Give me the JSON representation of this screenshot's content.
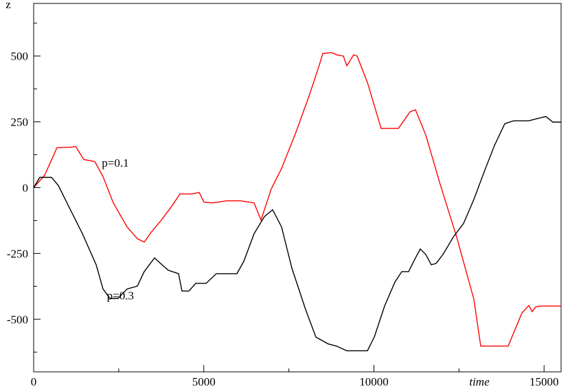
{
  "chart_data": {
    "type": "line",
    "x_label": "time",
    "y_label": "z",
    "xlim": [
      0,
      15500
    ],
    "ylim": [
      -700,
      700
    ],
    "xticks": [
      0,
      5000,
      10000,
      15000
    ],
    "yticks": [
      -500,
      -250,
      0,
      250,
      500
    ],
    "x_minor_ticks": [
      2500,
      7500,
      12500
    ],
    "y_minor_ticks": [
      -625,
      -375,
      -125,
      125,
      375,
      625
    ],
    "series": [
      {
        "name": "p=0.1",
        "color": "#ff0000",
        "x": [
          0,
          323,
          686,
          1130,
          1231,
          1473,
          1796,
          2038,
          2341,
          2745,
          3047,
          3249,
          3451,
          3754,
          4057,
          4299,
          4662,
          4864,
          5005,
          5267,
          5671,
          6075,
          6478,
          6680,
          6983,
          7286,
          7689,
          8093,
          8396,
          8496,
          8759,
          8900,
          9102,
          9203,
          9405,
          9506,
          9808,
          10212,
          10414,
          10717,
          10817,
          11060,
          11221,
          11524,
          11927,
          12432,
          12936,
          13138,
          13380,
          13845,
          13945,
          14349,
          14551,
          14652,
          14753,
          14914,
          15500
        ],
        "values": [
          0,
          47,
          152,
          154,
          157,
          107,
          99,
          42,
          -58,
          -149,
          -194,
          -207,
          -170,
          -123,
          -71,
          -24,
          -24,
          -18,
          -55,
          -58,
          -50,
          -50,
          -58,
          -123,
          -5,
          73,
          204,
          348,
          466,
          510,
          513,
          505,
          500,
          463,
          505,
          500,
          400,
          225,
          225,
          225,
          243,
          288,
          296,
          200,
          21,
          -188,
          -424,
          -602,
          -602,
          -602,
          -602,
          -476,
          -448,
          -471,
          -453,
          -450,
          -450
        ]
      },
      {
        "name": "p=0.3",
        "color": "#000000",
        "x": [
          0,
          182,
          525,
          727,
          1029,
          1433,
          1837,
          2038,
          2240,
          2482,
          2745,
          3047,
          3249,
          3552,
          3754,
          3956,
          4258,
          4359,
          4561,
          4763,
          5066,
          5368,
          5671,
          5974,
          6176,
          6478,
          6781,
          7023,
          7286,
          7589,
          7992,
          8295,
          8658,
          8900,
          9203,
          9506,
          9808,
          10010,
          10313,
          10616,
          10817,
          11019,
          11221,
          11362,
          11524,
          11685,
          11827,
          12029,
          12331,
          12634,
          12936,
          13239,
          13542,
          13845,
          14107,
          14551,
          14854,
          15056,
          15257,
          15500
        ],
        "values": [
          0,
          39,
          39,
          8,
          -71,
          -175,
          -293,
          -385,
          -421,
          -421,
          -385,
          -374,
          -319,
          -267,
          -291,
          -314,
          -327,
          -393,
          -393,
          -364,
          -364,
          -327,
          -327,
          -327,
          -280,
          -175,
          -110,
          -84,
          -149,
          -306,
          -463,
          -568,
          -594,
          -602,
          -620,
          -620,
          -620,
          -568,
          -450,
          -359,
          -319,
          -319,
          -267,
          -233,
          -254,
          -293,
          -288,
          -254,
          -188,
          -136,
          -45,
          60,
          160,
          243,
          254,
          254,
          264,
          270,
          249,
          249
        ]
      }
    ],
    "annotations": [
      {
        "text_path": "series.0.name",
        "x": 2400,
        "y": 80
      },
      {
        "text_path": "series.1.name",
        "x": 2550,
        "y": -425
      }
    ]
  }
}
